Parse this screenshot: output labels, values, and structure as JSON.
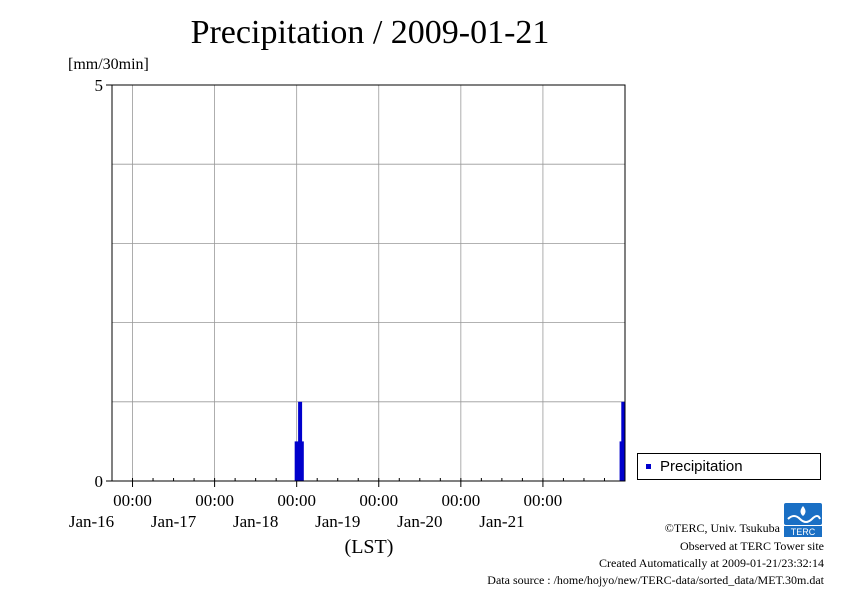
{
  "chart_data": {
    "type": "bar",
    "title": "Precipitation / 2009-01-21",
    "ylabel": "[mm/30min]",
    "xlabel": "(LST)",
    "ylim": [
      0,
      5
    ],
    "yticks": [
      0,
      5
    ],
    "ygrid_step": 1,
    "x_range": [
      "2009-01-15T18:00",
      "2009-01-22T00:00"
    ],
    "x_ticks": [
      {
        "time": "2009-01-16T00:00",
        "label_time": "00:00",
        "label_date": "Jan-16"
      },
      {
        "time": "2009-01-17T00:00",
        "label_time": "00:00",
        "label_date": "Jan-17"
      },
      {
        "time": "2009-01-18T00:00",
        "label_time": "00:00",
        "label_date": "Jan-18"
      },
      {
        "time": "2009-01-19T00:00",
        "label_time": "00:00",
        "label_date": "Jan-19"
      },
      {
        "time": "2009-01-20T00:00",
        "label_time": "00:00",
        "label_date": "Jan-20"
      },
      {
        "time": "2009-01-21T00:00",
        "label_time": "00:00",
        "label_date": "Jan-21"
      }
    ],
    "bar_color": "#0000cc",
    "grid": true,
    "legend_position": "right",
    "series": [
      {
        "name": "Precipitation",
        "points": [
          {
            "t": "2009-01-18T00:00",
            "v": 0.5
          },
          {
            "t": "2009-01-18T00:30",
            "v": 0.0
          },
          {
            "t": "2009-01-18T01:00",
            "v": 1.0
          },
          {
            "t": "2009-01-18T01:30",
            "v": 0.5
          },
          {
            "t": "2009-01-21T23:00",
            "v": 0.5
          },
          {
            "t": "2009-01-21T23:30",
            "v": 1.0
          }
        ]
      }
    ]
  },
  "legend": {
    "label": "Precipitation",
    "color": "#0000cc"
  },
  "footer": {
    "copyright": "©TERC, Univ. Tsukuba",
    "observed": "Observed at TERC Tower site",
    "created": "Created Automatically at 2009-01-21/23:32:14",
    "source": "Data source : /home/hojyo/new/TERC-data/sorted_data/MET.30m.dat"
  },
  "logo": {
    "text": "TERC",
    "color": "#1a6fc4"
  }
}
